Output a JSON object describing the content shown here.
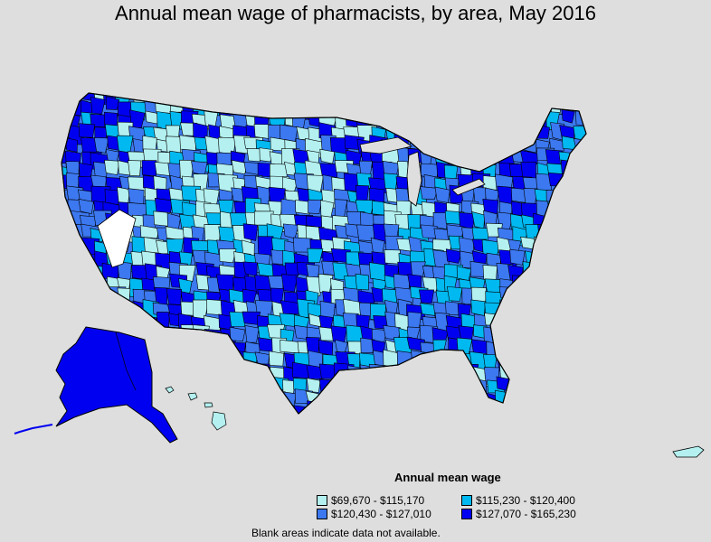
{
  "title": "Annual mean wage of pharmacists, by area, May 2016",
  "legend": {
    "title": "Annual mean wage",
    "items": [
      {
        "label": "$69,670 - $115,170",
        "color": "#b4f0f0"
      },
      {
        "label": "$115,230 - $120,400",
        "color": "#00b9f0"
      },
      {
        "label": "$120,430 - $127,010",
        "color": "#3c78f0"
      },
      {
        "label": "$127,070 - $165,230",
        "color": "#0000f0"
      }
    ]
  },
  "footnote": "Blank areas indicate data not available.",
  "colors": {
    "background": "#dedede",
    "blank_area": "#ffffff",
    "border": "#000000"
  }
}
